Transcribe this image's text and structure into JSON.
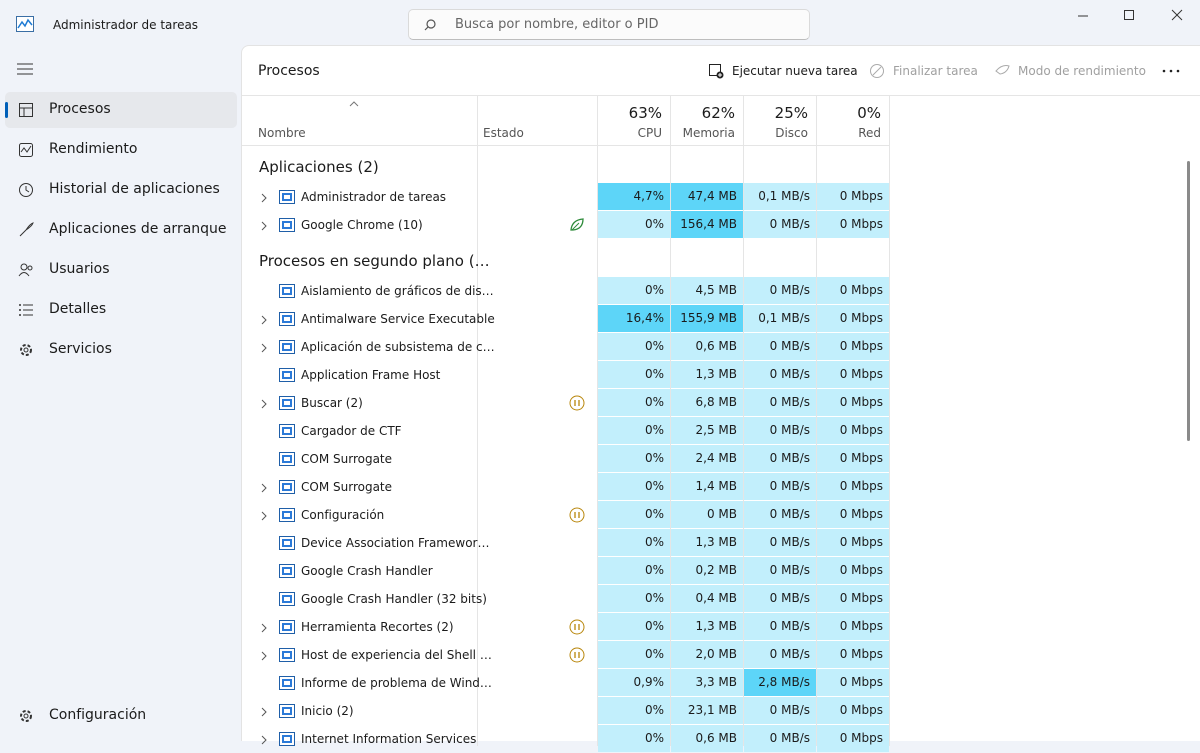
{
  "window": {
    "title": "Administrador de tareas",
    "search_placeholder": "Busca por nombre, editor o PID"
  },
  "nav": {
    "items": [
      "Procesos",
      "Rendimiento",
      "Historial de aplicaciones",
      "Aplicaciones de arranque",
      "Usuarios",
      "Detalles",
      "Servicios"
    ],
    "settings": "Configuración"
  },
  "toolbar": {
    "title": "Procesos",
    "actions": [
      "Ejecutar nueva tarea",
      "Finalizar tarea",
      "Modo de rendimiento"
    ]
  },
  "table": {
    "columns": [
      {
        "label": "Nombre"
      },
      {
        "label": "Estado"
      },
      {
        "percent": "63%",
        "label": "CPU"
      },
      {
        "percent": "62%",
        "label": "Memoria"
      },
      {
        "percent": "25%",
        "label": "Disco"
      },
      {
        "percent": "0%",
        "label": "Red"
      }
    ],
    "groups": [
      {
        "title": "Aplicaciones (2)",
        "rows": [
          {
            "name": "Administrador de tareas",
            "values": [
              "4,7%",
              "47,4 MB",
              "0,1 MB/s",
              "0 Mbps"
            ],
            "expand": true,
            "hot": [
              0,
              1
            ]
          },
          {
            "name": "Google Chrome (10)",
            "values": [
              "0%",
              "156,4 MB",
              "0 MB/s",
              "0 Mbps"
            ],
            "expand": true,
            "status": "leaf",
            "hot": [
              1
            ]
          }
        ]
      },
      {
        "title": "Procesos en segundo plano (…",
        "rows": [
          {
            "name": "Aislamiento de gráficos de dis…",
            "values": [
              "0%",
              "4,5 MB",
              "0 MB/s",
              "0 Mbps"
            ]
          },
          {
            "name": "Antimalware Service Executable",
            "values": [
              "16,4%",
              "155,9 MB",
              "0,1 MB/s",
              "0 Mbps"
            ],
            "expand": true,
            "hot": [
              0,
              1
            ]
          },
          {
            "name": "Aplicación de subsistema de c…",
            "values": [
              "0%",
              "0,6 MB",
              "0 MB/s",
              "0 Mbps"
            ],
            "expand": true
          },
          {
            "name": "Application Frame Host",
            "values": [
              "0%",
              "1,3 MB",
              "0 MB/s",
              "0 Mbps"
            ]
          },
          {
            "name": "Buscar (2)",
            "values": [
              "0%",
              "6,8 MB",
              "0 MB/s",
              "0 Mbps"
            ],
            "expand": true,
            "status": "paused"
          },
          {
            "name": "Cargador de CTF",
            "values": [
              "0%",
              "2,5 MB",
              "0 MB/s",
              "0 Mbps"
            ]
          },
          {
            "name": "COM Surrogate",
            "values": [
              "0%",
              "2,4 MB",
              "0 MB/s",
              "0 Mbps"
            ]
          },
          {
            "name": "COM Surrogate",
            "values": [
              "0%",
              "1,4 MB",
              "0 MB/s",
              "0 Mbps"
            ],
            "expand": true
          },
          {
            "name": "Configuración",
            "values": [
              "0%",
              "0 MB",
              "0 MB/s",
              "0 Mbps"
            ],
            "expand": true,
            "status": "paused"
          },
          {
            "name": "Device Association Framewor…",
            "values": [
              "0%",
              "1,3 MB",
              "0 MB/s",
              "0 Mbps"
            ]
          },
          {
            "name": "Google Crash Handler",
            "values": [
              "0%",
              "0,2 MB",
              "0 MB/s",
              "0 Mbps"
            ]
          },
          {
            "name": "Google Crash Handler (32 bits)",
            "values": [
              "0%",
              "0,4 MB",
              "0 MB/s",
              "0 Mbps"
            ]
          },
          {
            "name": "Herramienta Recortes (2)",
            "values": [
              "0%",
              "1,3 MB",
              "0 MB/s",
              "0 Mbps"
            ],
            "expand": true,
            "status": "paused"
          },
          {
            "name": "Host de experiencia del Shell …",
            "values": [
              "0%",
              "2,0 MB",
              "0 MB/s",
              "0 Mbps"
            ],
            "expand": true,
            "status": "paused"
          },
          {
            "name": "Informe de problema de Wind…",
            "values": [
              "0,9%",
              "3,3 MB",
              "2,8 MB/s",
              "0 Mbps"
            ],
            "hot": [
              2
            ]
          },
          {
            "name": "Inicio (2)",
            "values": [
              "0%",
              "23,1 MB",
              "0 MB/s",
              "0 Mbps"
            ],
            "expand": true
          },
          {
            "name": "Internet Information Services",
            "values": [
              "0%",
              "0,6 MB",
              "0 MB/s",
              "0 Mbps"
            ],
            "expand": true
          }
        ]
      }
    ]
  }
}
